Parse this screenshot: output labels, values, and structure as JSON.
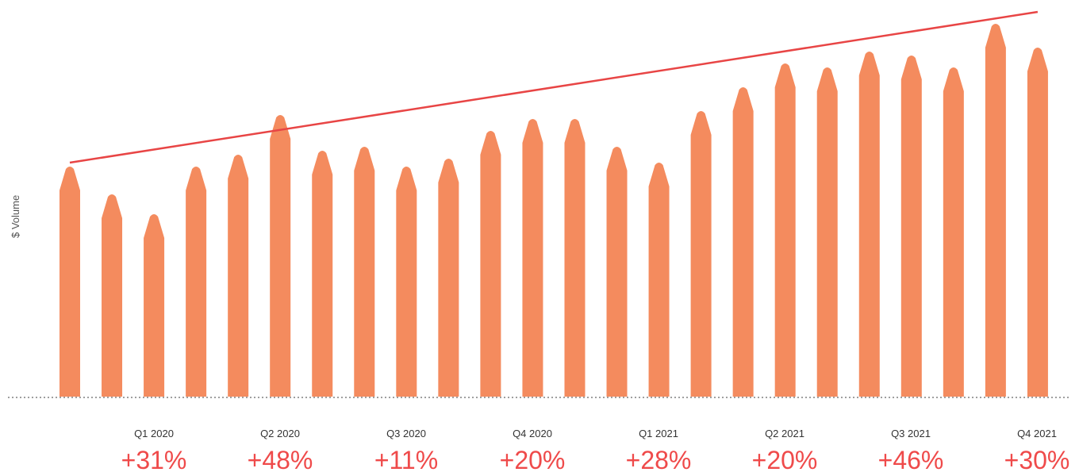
{
  "chart_data": {
    "type": "bar",
    "ylabel": "$ Volume",
    "xlabel": "",
    "bar_values": [
      58,
      51,
      46,
      58,
      61,
      71,
      62,
      63,
      58,
      60,
      67,
      70,
      70,
      63,
      59,
      72,
      78,
      84,
      83,
      87,
      86,
      83,
      94,
      88
    ],
    "ylim": [
      0,
      100
    ],
    "trend_line": {
      "start_value": 59,
      "end_value": 97
    },
    "quarters": [
      {
        "label": "Q1 2020",
        "change": "+31%"
      },
      {
        "label": "Q2 2020",
        "change": "+48%"
      },
      {
        "label": "Q3 2020",
        "change": "+11%"
      },
      {
        "label": "Q4 2020",
        "change": "+20%"
      },
      {
        "label": "Q1 2021",
        "change": "+28%"
      },
      {
        "label": "Q2 2021",
        "change": "+20%"
      },
      {
        "label": "Q3 2021",
        "change": "+46%"
      },
      {
        "label": "Q4 2021",
        "change": "+30%"
      }
    ],
    "grid": false,
    "colors": {
      "bar": "#f48b5e",
      "trend": "#e84545",
      "change_text": "#ef4a4a",
      "baseline": "#666666"
    }
  }
}
